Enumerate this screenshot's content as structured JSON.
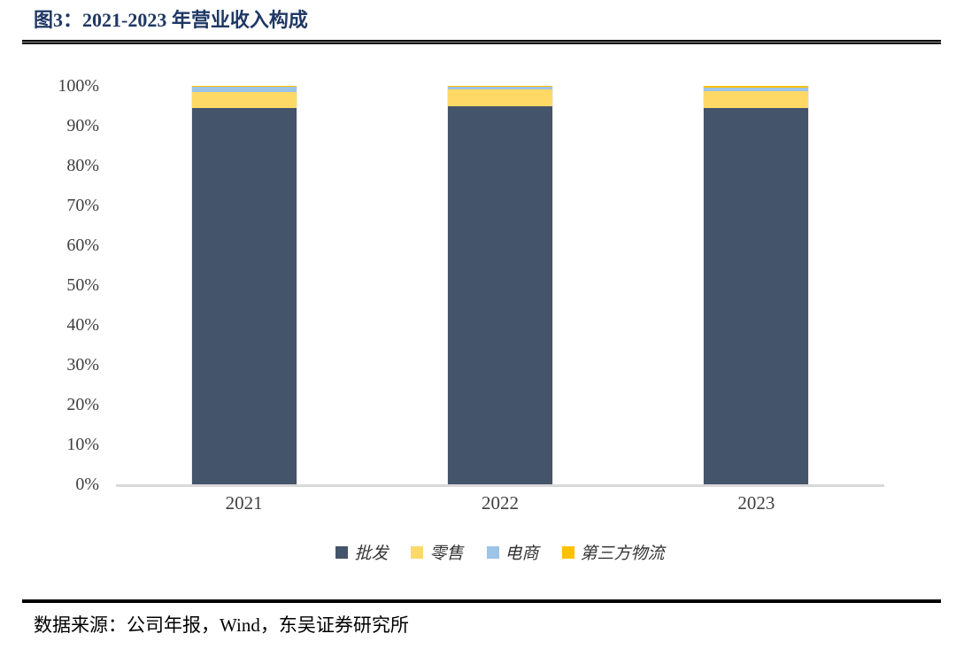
{
  "figure": {
    "title": "图3：2021-2023 年营业收入构成",
    "source": "数据来源：公司年报，Wind，东吴证券研究所"
  },
  "chart_data": {
    "type": "bar",
    "variant": "stacked-100-percent",
    "title": "2021-2023 年营业收入构成",
    "categories": [
      "2021",
      "2022",
      "2023"
    ],
    "series": [
      {
        "id": "wholesale",
        "name": "批发",
        "color": "#44546A",
        "values": [
          94.5,
          95.0,
          94.4
        ]
      },
      {
        "id": "retail",
        "name": "零售",
        "color": "#FFD966",
        "values": [
          3.9,
          4.1,
          4.3
        ]
      },
      {
        "id": "ecommerce",
        "name": "电商",
        "color": "#9DC3E6",
        "values": [
          1.4,
          0.7,
          0.9
        ]
      },
      {
        "id": "third-party-logistics",
        "name": "第三方物流",
        "color": "#FFC000",
        "values": [
          0.2,
          0.2,
          0.4
        ]
      }
    ],
    "xlabel": "",
    "ylabel": "",
    "ylim": [
      0,
      100
    ],
    "yticks": [
      "0%",
      "10%",
      "20%",
      "30%",
      "40%",
      "50%",
      "60%",
      "70%",
      "80%",
      "90%",
      "100%"
    ],
    "grid": false,
    "legend_position": "bottom",
    "axis_line_color": "#D9D9D9",
    "tick_label_color": "#404040",
    "title_color": "#1F3864"
  }
}
